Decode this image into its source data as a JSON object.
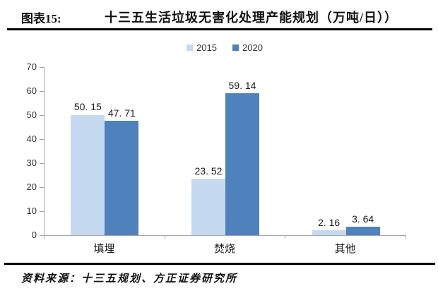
{
  "header": {
    "figure_label": "图表15:",
    "title": "十三五生活垃圾无害化处理产能规划（万吨/日））"
  },
  "legend": [
    {
      "label": "2015",
      "color": "#c5d9f1"
    },
    {
      "label": "2020",
      "color": "#4f81bd"
    }
  ],
  "chart_data": {
    "type": "bar",
    "title": "十三五生活垃圾无害化处理产能规划（万吨/日））",
    "categories": [
      "填埋",
      "焚烧",
      "其他"
    ],
    "series": [
      {
        "name": "2015",
        "color": "#c5d9f1",
        "values": [
          50.15,
          23.52,
          2.16
        ],
        "labels": [
          "50. 15",
          "23. 52",
          "2. 16"
        ]
      },
      {
        "name": "2020",
        "color": "#4f81bd",
        "values": [
          47.71,
          59.14,
          3.64
        ],
        "labels": [
          "47. 71",
          "59. 14",
          "3. 64"
        ]
      }
    ],
    "xlabel": "",
    "ylabel": "",
    "ylim": [
      0,
      70
    ],
    "yticks": [
      0,
      10,
      20,
      30,
      40,
      50,
      60,
      70
    ],
    "grid": false,
    "legend_position": "top-center",
    "axis_color": "#a6a6a6"
  },
  "footer": {
    "source": "资料来源：十三五规划、方正证券研究所"
  }
}
